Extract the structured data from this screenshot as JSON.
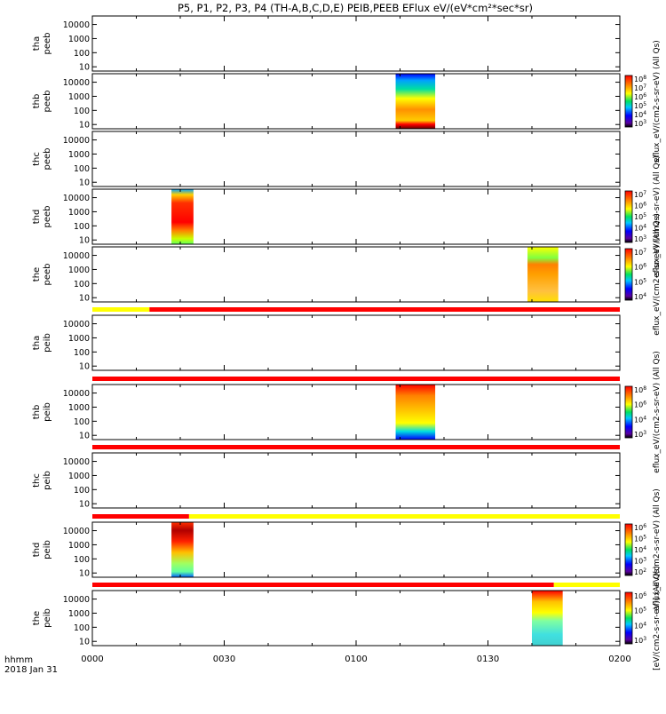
{
  "title": "P5, P1, P2, P3, P4 (TH-A,B,C,D,E) PEIB,PEEB EFlux eV/(eV*cm²*sec*sr)",
  "xaxis": {
    "row_label": "hhmm",
    "date_label": "2018 Jan 31",
    "tick_labels": [
      "0000",
      "0030",
      "0100",
      "0130",
      "0200"
    ]
  },
  "chart_data": {
    "type": "heatmap",
    "time_range_minutes": [
      0,
      120
    ],
    "panels": [
      {
        "label_line1": "tha",
        "label_line2": "peeb",
        "yticks": [
          "10000",
          "1000",
          "100",
          "10"
        ],
        "yscale": "log",
        "colorbar": "",
        "colorbar_ticks": [],
        "data": []
      },
      {
        "label_line1": "thb",
        "label_line2": "peeb",
        "yticks": [
          "10000",
          "1000",
          "100",
          "10"
        ],
        "yscale": "log",
        "colorbar": "eflux_eV/(cm2-s-sr-eV) (All Qs)",
        "colorbar_ticks": [
          "10^8",
          "10^7",
          "10^6",
          "10^5",
          "10^4",
          "10^3"
        ],
        "data": [
          {
            "t_start": 69,
            "t_end": 78
          }
        ]
      },
      {
        "label_line1": "thc",
        "label_line2": "peeb",
        "yticks": [
          "10000",
          "1000",
          "100",
          "10"
        ],
        "yscale": "log",
        "colorbar": "",
        "colorbar_ticks": [],
        "data": []
      },
      {
        "label_line1": "thd",
        "label_line2": "peeb",
        "yticks": [
          "10000",
          "1000",
          "100",
          "10"
        ],
        "yscale": "log",
        "colorbar": "eflux_eV/(cm2-s-sr-eV) (All Qs)",
        "colorbar_ticks": [
          "10^7",
          "10^6",
          "10^5",
          "10^4",
          "10^3"
        ],
        "data": [
          {
            "t_start": 18,
            "t_end": 23
          }
        ]
      },
      {
        "label_line1": "the",
        "label_line2": "peeb",
        "yticks": [
          "10000",
          "1000",
          "100",
          "10"
        ],
        "yscale": "log",
        "colorbar": "eflux_eV/(cm2-s-sr-eV) (All Qs)",
        "colorbar_ticks": [
          "10^7",
          "10^6",
          "10^5",
          "10^4"
        ],
        "data": [
          {
            "t_start": 99,
            "t_end": 106
          }
        ]
      },
      {
        "label_line1": "tha",
        "label_line2": "peib",
        "yticks": [
          "10000",
          "1000",
          "100",
          "10"
        ],
        "yscale": "log",
        "colorbar": "",
        "colorbar_ticks": [],
        "data": []
      },
      {
        "label_line1": "thb",
        "label_line2": "peib",
        "yticks": [
          "10000",
          "1000",
          "100",
          "10"
        ],
        "yscale": "log",
        "colorbar": "eflux_eV/(cm2-s-sr-eV) (All Qs)",
        "colorbar_ticks": [
          "10^8",
          "10^6",
          "10^4",
          "10^3"
        ],
        "data": [
          {
            "t_start": 69,
            "t_end": 78
          }
        ]
      },
      {
        "label_line1": "thc",
        "label_line2": "peib",
        "yticks": [
          "10000",
          "1000",
          "100",
          "10"
        ],
        "yscale": "log",
        "colorbar": "",
        "colorbar_ticks": [],
        "data": []
      },
      {
        "label_line1": "thd",
        "label_line2": "peib",
        "yticks": [
          "10000",
          "1000",
          "100",
          "10"
        ],
        "yscale": "log",
        "colorbar": "eflux_eV/(cm2-s-sr-eV) (All Qs)",
        "colorbar_ticks": [
          "10^6",
          "10^5",
          "10^4",
          "10^3",
          "10^2"
        ],
        "data": [
          {
            "t_start": 18,
            "t_end": 23
          }
        ]
      },
      {
        "label_line1": "the",
        "label_line2": "peib",
        "yticks": [
          "10000",
          "1000",
          "100",
          "10"
        ],
        "yscale": "log",
        "colorbar": "[eV/(cm2-s-sr-eV)] (All Qs)",
        "colorbar_ticks": [
          "10^6",
          "10^5",
          "10^4",
          "10^3"
        ],
        "data": [
          {
            "t_start": 100,
            "t_end": 107
          }
        ]
      }
    ],
    "mode_bars": [
      {
        "after_panel": 4,
        "segments": [
          {
            "t_start": 0,
            "t_end": 13,
            "color": "#ffff00"
          },
          {
            "t_start": 13,
            "t_end": 120,
            "color": "#ff0000"
          }
        ]
      },
      {
        "after_panel": 5,
        "segments": [
          {
            "t_start": 0,
            "t_end": 120,
            "color": "#ff0000"
          }
        ]
      },
      {
        "after_panel": 6,
        "segments": [
          {
            "t_start": 0,
            "t_end": 120,
            "color": "#ff0000"
          }
        ]
      },
      {
        "after_panel": 7,
        "segments": [
          {
            "t_start": 0,
            "t_end": 22,
            "color": "#ff0000"
          },
          {
            "t_start": 22,
            "t_end": 120,
            "color": "#ffff00"
          }
        ]
      },
      {
        "after_panel": 8,
        "segments": [
          {
            "t_start": 0,
            "t_end": 105,
            "color": "#ff0000"
          },
          {
            "t_start": 105,
            "t_end": 120,
            "color": "#ffff00"
          }
        ]
      }
    ]
  }
}
